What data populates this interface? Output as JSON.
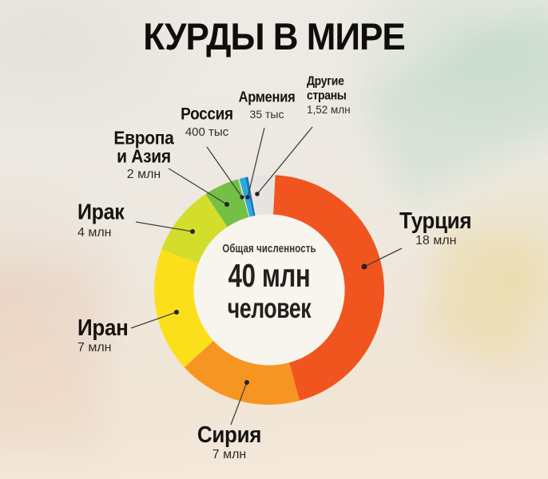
{
  "title": "КУРДЫ В МИРЕ",
  "center": {
    "caption": "Общая численность",
    "value": "40 млн",
    "unit": "человек"
  },
  "chart_data": {
    "type": "donut",
    "title": "КУРДЫ В МИРЕ",
    "center_caption": "Общая численность",
    "center_value": "40 млн человек",
    "unit": "people",
    "total_millions": 39.955,
    "start_angle_deg": 3,
    "legend_position": "callouts-around-ring",
    "segments": [
      {
        "id": "turkey",
        "label": "Турция",
        "value_text": "18 млн",
        "value_millions": 18,
        "color": "#F1551F"
      },
      {
        "id": "syria",
        "label": "Сирия",
        "value_text": "7 млн",
        "value_millions": 7,
        "color": "#F79522"
      },
      {
        "id": "iran",
        "label": "Иран",
        "value_text": "7 млн",
        "value_millions": 7,
        "color": "#FCDF1B"
      },
      {
        "id": "iraq",
        "label": "Ирак",
        "value_text": "4 млн",
        "value_millions": 4,
        "color": "#D3DE2C"
      },
      {
        "id": "europe-asia",
        "label": "Европа и Азия",
        "value_text": "2 млн",
        "value_millions": 2,
        "color": "#74C044"
      },
      {
        "id": "russia",
        "label": "Россия",
        "value_text": "400 тыс",
        "value_millions": 0.4,
        "color": "#2AA9DF",
        "gap_before_deg": 0.6
      },
      {
        "id": "armenia",
        "label": "Армения",
        "value_text": "35 тыс",
        "value_millions": 0.035,
        "color": "#1B75BC",
        "display_deg": 1.4
      },
      {
        "id": "other",
        "label": "Другие страны",
        "value_text": "1,52 млн",
        "value_millions": 1.52,
        "color": "#E7E4DF",
        "gap_before_deg": 0.9
      }
    ]
  }
}
